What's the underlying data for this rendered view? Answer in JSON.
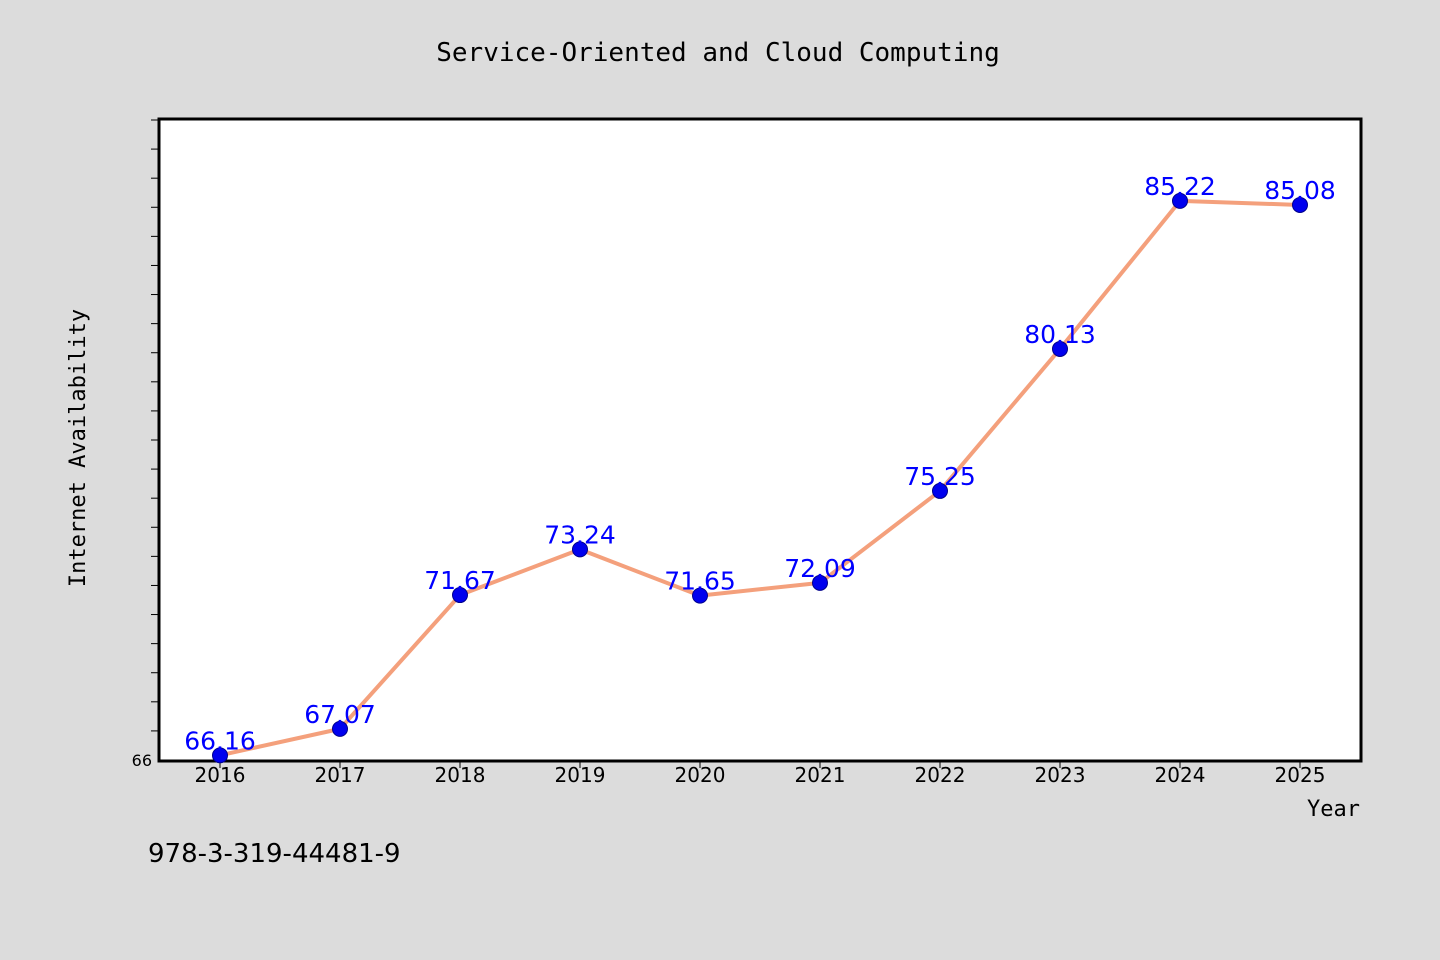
{
  "chart_data": {
    "type": "line",
    "title": "Service-Oriented and Cloud Computing",
    "xlabel": "Year",
    "ylabel": "Internet Availability",
    "x": [
      "2016",
      "2017",
      "2018",
      "2019",
      "2020",
      "2021",
      "2022",
      "2023",
      "2024",
      "2025"
    ],
    "series": [
      {
        "values": [
          66.16,
          67.07,
          71.67,
          73.24,
          71.65,
          72.09,
          75.25,
          80.13,
          85.22,
          85.08
        ],
        "labels": [
          "66.16",
          "67.07",
          "71.67",
          "73.24",
          "71.65",
          "72.09",
          "75.25",
          "80.13",
          "85.22",
          "85.08"
        ],
        "line_color": "#f4a07c",
        "marker_color": "#0000ee",
        "label_color": "#0000ff"
      }
    ],
    "ylim": [
      66,
      88
    ],
    "y_tick_labels": [
      "66"
    ],
    "grid": false,
    "legend": "none"
  },
  "annotation": "978-3-319-44481-9",
  "colors": {
    "background": "#dcdcdc",
    "plot_background": "#ffffff"
  }
}
